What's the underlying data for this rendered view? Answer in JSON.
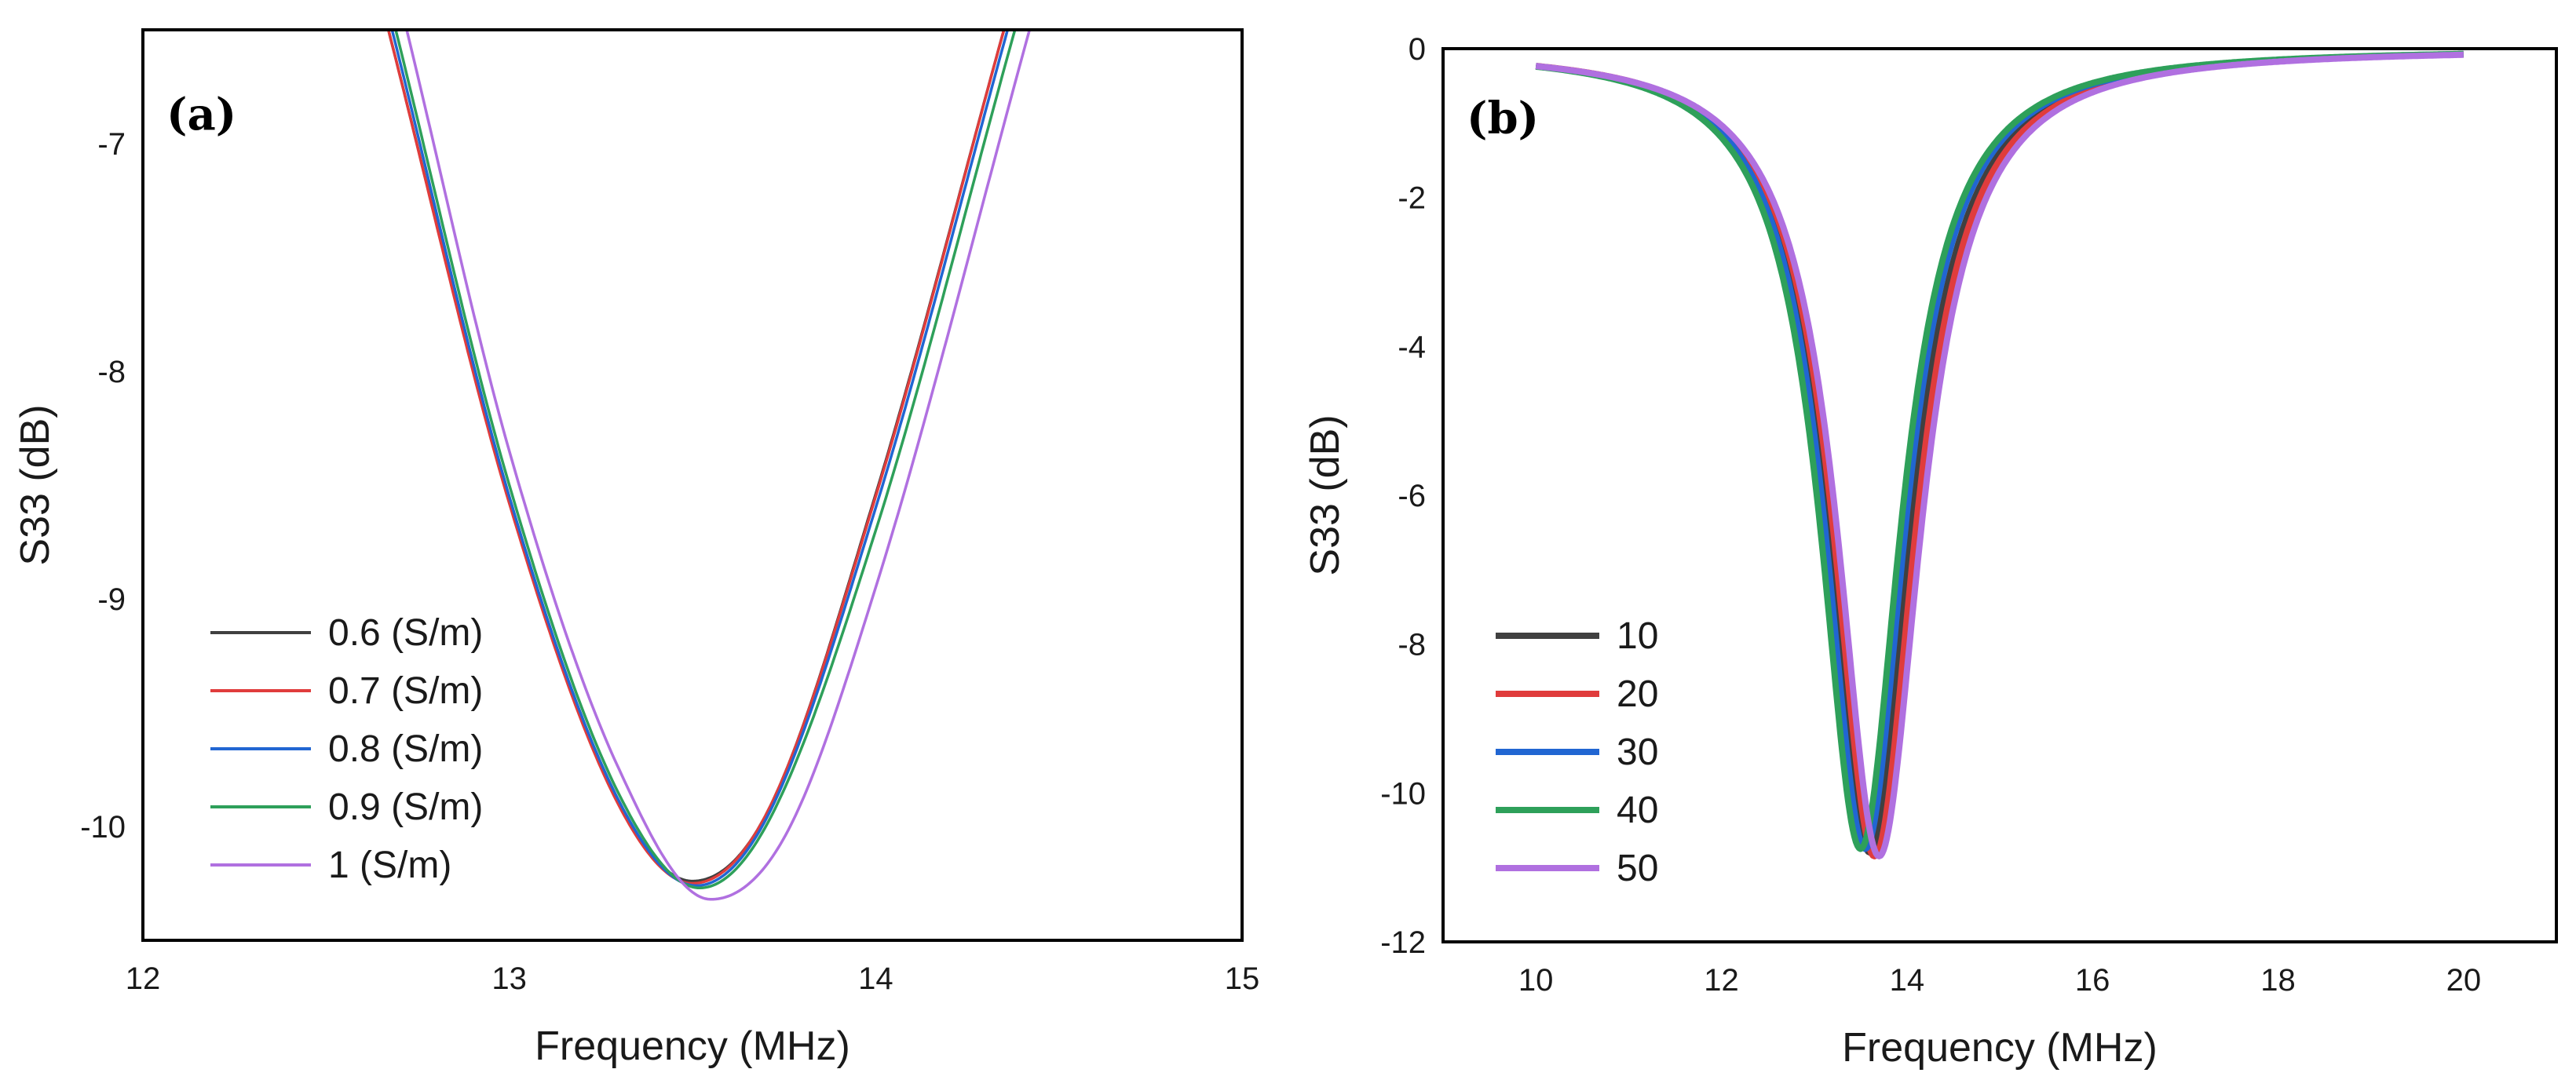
{
  "chart_data": [
    {
      "type": "line",
      "panel_label": "(a)",
      "xlabel": "Frequency (MHz)",
      "ylabel": "S33 (dB)",
      "xlim": [
        12,
        15
      ],
      "ylim": [
        -10.5,
        -6.5
      ],
      "xticks": [
        12,
        13,
        14,
        15
      ],
      "yticks": [
        -10,
        -9,
        -8,
        -7
      ],
      "legend_position": "bottom-left",
      "series": [
        {
          "name": "0.6 (S/m)",
          "color": "#404040",
          "x": [
            12.67,
            13.0,
            13.3,
            13.5,
            13.7,
            14.0,
            14.35
          ],
          "y": [
            -6.5,
            -8.57,
            -9.9,
            -10.24,
            -9.95,
            -8.54,
            -6.5
          ]
        },
        {
          "name": "0.7 (S/m)",
          "color": "#e03c3c",
          "x": [
            12.67,
            13.0,
            13.3,
            13.5,
            13.7,
            14.0,
            14.35
          ],
          "y": [
            -6.5,
            -8.58,
            -9.91,
            -10.25,
            -9.95,
            -8.55,
            -6.5
          ]
        },
        {
          "name": "0.8 (S/m)",
          "color": "#2166d2",
          "x": [
            12.68,
            13.0,
            13.3,
            13.51,
            13.7,
            14.0,
            14.36
          ],
          "y": [
            -6.5,
            -8.55,
            -9.89,
            -10.26,
            -9.97,
            -8.6,
            -6.5
          ]
        },
        {
          "name": "0.9 (S/m)",
          "color": "#2ea05a",
          "x": [
            12.69,
            13.0,
            13.3,
            13.52,
            13.7,
            14.0,
            14.38
          ],
          "y": [
            -6.5,
            -8.5,
            -9.86,
            -10.27,
            -10.0,
            -8.7,
            -6.5
          ]
        },
        {
          "name": "1 (S/m)",
          "color": "#b070e0",
          "x": [
            12.72,
            13.0,
            13.3,
            13.55,
            13.75,
            14.0,
            14.42
          ],
          "y": [
            -6.5,
            -8.35,
            -9.75,
            -10.32,
            -10.05,
            -8.95,
            -6.5
          ]
        }
      ]
    },
    {
      "type": "line",
      "panel_label": "(b)",
      "xlabel": "Frequency (MHz)",
      "ylabel": "S33 (dB)",
      "xlim": [
        9,
        21
      ],
      "ylim": [
        -12,
        0
      ],
      "xticks": [
        10,
        12,
        14,
        16,
        18,
        20
      ],
      "yticks": [
        0,
        -2,
        -4,
        -6,
        -8,
        -10,
        -12
      ],
      "legend_position": "bottom-left",
      "series": [
        {
          "name": "10",
          "color": "#404040",
          "f0": 13.6,
          "width": 0.54,
          "depth": 10.8
        },
        {
          "name": "20",
          "color": "#e03c3c",
          "f0": 13.65,
          "width": 0.54,
          "depth": 10.85
        },
        {
          "name": "30",
          "color": "#2166d2",
          "f0": 13.55,
          "width": 0.53,
          "depth": 10.75
        },
        {
          "name": "40",
          "color": "#2ea05a",
          "f0": 13.5,
          "width": 0.53,
          "depth": 10.75
        },
        {
          "name": "50",
          "color": "#b070e0",
          "f0": 13.7,
          "width": 0.55,
          "depth": 10.85
        }
      ]
    }
  ]
}
